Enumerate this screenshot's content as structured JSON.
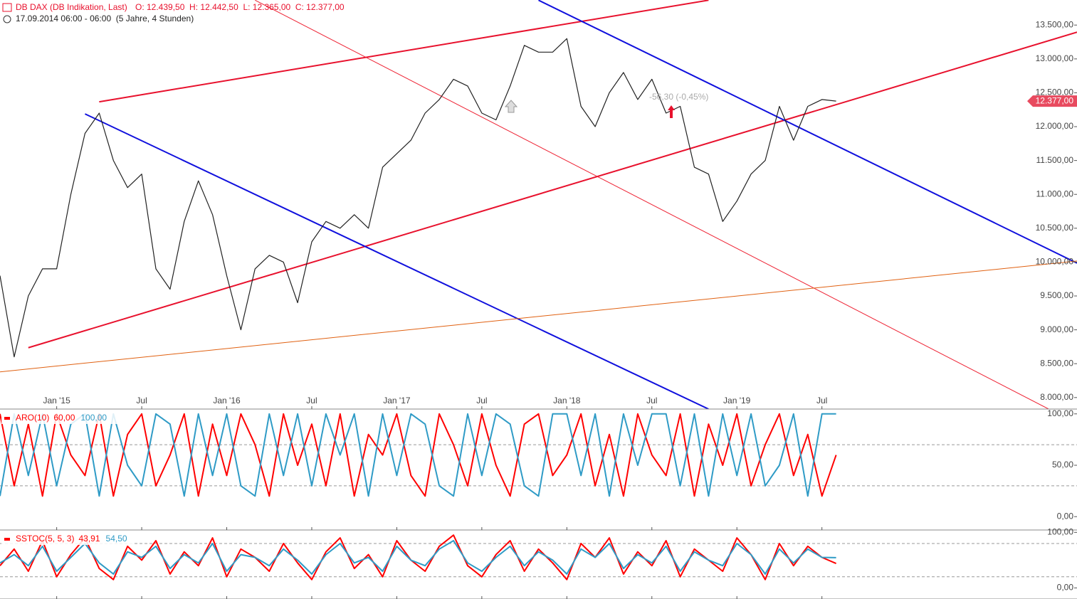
{
  "chart_data": [
    {
      "type": "line",
      "title": "DB DAX (DB Indikation, Last)",
      "ohlc": "O: 12.439,50  H: 12.442,50  L: 12.365,00  C: 12.377,00",
      "subtitle": "17.09.2014 06:00 - 06:00  (5 Jahre, 4 Stunden)",
      "annotation": "-56,30 (-0,45%)",
      "xlim": [
        "2014-09",
        "2021-01"
      ],
      "xticks": [
        {
          "value": "2015-01",
          "label": "Jan '15"
        },
        {
          "value": "2015-07",
          "label": "Jul"
        },
        {
          "value": "2016-01",
          "label": "Jan '16"
        },
        {
          "value": "2016-07",
          "label": "Jul"
        },
        {
          "value": "2017-01",
          "label": "Jan '17"
        },
        {
          "value": "2017-07",
          "label": "Jul"
        },
        {
          "value": "2018-01",
          "label": "Jan '18"
        },
        {
          "value": "2018-07",
          "label": "Jul"
        },
        {
          "value": "2019-01",
          "label": "Jan '19"
        },
        {
          "value": "2019-07",
          "label": "Jul"
        }
      ],
      "ylim": [
        7830,
        13870
      ],
      "yticks": [
        {
          "value": 8000,
          "label": "8.000,00"
        },
        {
          "value": 8500,
          "label": "8.500,00"
        },
        {
          "value": 9000,
          "label": "9.000,00"
        },
        {
          "value": 9500,
          "label": "9.500,00"
        },
        {
          "value": 10000,
          "label": "10.000,00"
        },
        {
          "value": 10500,
          "label": "10.500,00"
        },
        {
          "value": 11000,
          "label": "11.000,00"
        },
        {
          "value": 11500,
          "label": "11.500,00"
        },
        {
          "value": 12000,
          "label": "12.000,00"
        },
        {
          "value": 12500,
          "label": "12.500,00"
        },
        {
          "value": 13000,
          "label": "13.000,00"
        },
        {
          "value": 13500,
          "label": "13.500,00"
        }
      ],
      "x": [
        "2014-09",
        "2014-10",
        "2014-11",
        "2014-12",
        "2015-01",
        "2015-02",
        "2015-03",
        "2015-04",
        "2015-05",
        "2015-06",
        "2015-07",
        "2015-08",
        "2015-09",
        "2015-10",
        "2015-11",
        "2015-12",
        "2016-01",
        "2016-02",
        "2016-03",
        "2016-04",
        "2016-05",
        "2016-06",
        "2016-07",
        "2016-08",
        "2016-09",
        "2016-10",
        "2016-11",
        "2016-12",
        "2017-01",
        "2017-02",
        "2017-03",
        "2017-04",
        "2017-05",
        "2017-06",
        "2017-07",
        "2017-08",
        "2017-09",
        "2017-10",
        "2017-11",
        "2017-12",
        "2018-01",
        "2018-02",
        "2018-03",
        "2018-04",
        "2018-05",
        "2018-06",
        "2018-07",
        "2018-08",
        "2018-09",
        "2018-10",
        "2018-11",
        "2018-12",
        "2019-01",
        "2019-02",
        "2019-03",
        "2019-04",
        "2019-05",
        "2019-06",
        "2019-07",
        "2019-08"
      ],
      "series": [
        {
          "color": "#222222",
          "values": [
            9800,
            8600,
            9500,
            9900,
            9900,
            11000,
            11900,
            12200,
            11500,
            11100,
            11300,
            9900,
            9600,
            10600,
            11200,
            10700,
            9800,
            9000,
            9900,
            10100,
            10000,
            9400,
            10300,
            10600,
            10500,
            10700,
            10500,
            11400,
            11600,
            11800,
            12200,
            12400,
            12700,
            12600,
            12200,
            12100,
            12600,
            13200,
            13100,
            13100,
            13300,
            12300,
            12000,
            12500,
            12800,
            12400,
            12700,
            12200,
            12300,
            11400,
            11300,
            10600,
            10900,
            11300,
            11500,
            12300,
            11800,
            12300,
            12400,
            12377
          ]
        }
      ],
      "last_price": {
        "value": 12377,
        "label": "12.377,00"
      },
      "trendlines": [
        {
          "color": "#e8112d",
          "width": 2,
          "from": [
            "2015-04",
            12367
          ],
          "to": [
            "2018-11",
            13867
          ]
        },
        {
          "color": "#e8112d",
          "width": 2,
          "from": [
            "2014-11",
            8736
          ],
          "to": [
            "2021-01",
            13395
          ]
        },
        {
          "color": "#1010dd",
          "width": 2,
          "from": [
            "2015-03",
            12188
          ],
          "to": [
            "2018-11",
            7830
          ]
        },
        {
          "color": "#1010dd",
          "width": 2,
          "from": [
            "2017-11",
            13867
          ],
          "to": [
            "2021-01",
            9985
          ]
        },
        {
          "color": "#ee2233",
          "width": 1,
          "from": [
            "2016-03",
            13867
          ],
          "to": [
            "2020-11",
            7830
          ]
        },
        {
          "color": "#e06010",
          "width": 1,
          "from": [
            "2014-09",
            8379
          ],
          "to": [
            "2021-01",
            10016
          ]
        }
      ]
    },
    {
      "type": "line",
      "title": "ARO(10)",
      "xlim": [
        "2014-09",
        "2021-01"
      ],
      "ylim": [
        -13,
        104
      ],
      "yticks": [
        {
          "value": 0,
          "label": "0,00"
        },
        {
          "value": 50,
          "label": "50,00"
        },
        {
          "value": 100,
          "label": "100,00"
        }
      ],
      "levels": [
        70,
        30
      ],
      "x": [
        "2014-09",
        "2014-10",
        "2014-11",
        "2014-12",
        "2015-01",
        "2015-02",
        "2015-03",
        "2015-04",
        "2015-05",
        "2015-06",
        "2015-07",
        "2015-08",
        "2015-09",
        "2015-10",
        "2015-11",
        "2015-12",
        "2016-01",
        "2016-02",
        "2016-03",
        "2016-04",
        "2016-05",
        "2016-06",
        "2016-07",
        "2016-08",
        "2016-09",
        "2016-10",
        "2016-11",
        "2016-12",
        "2017-01",
        "2017-02",
        "2017-03",
        "2017-04",
        "2017-05",
        "2017-06",
        "2017-07",
        "2017-08",
        "2017-09",
        "2017-10",
        "2017-11",
        "2017-12",
        "2018-01",
        "2018-02",
        "2018-03",
        "2018-04",
        "2018-05",
        "2018-06",
        "2018-07",
        "2018-08",
        "2018-09",
        "2018-10",
        "2018-11",
        "2018-12",
        "2019-01",
        "2019-02",
        "2019-03",
        "2019-04",
        "2019-05",
        "2019-06",
        "2019-07",
        "2019-08"
      ],
      "series": [
        {
          "color": "#ff0000",
          "last_label": "60,00",
          "values": [
            100,
            30,
            90,
            20,
            100,
            60,
            40,
            100,
            20,
            80,
            100,
            30,
            60,
            100,
            20,
            90,
            40,
            100,
            70,
            20,
            100,
            50,
            90,
            30,
            100,
            20,
            80,
            60,
            100,
            40,
            20,
            100,
            70,
            30,
            100,
            50,
            20,
            90,
            100,
            40,
            60,
            100,
            30,
            80,
            20,
            100,
            60,
            40,
            100,
            20,
            90,
            50,
            100,
            30,
            70,
            100,
            40,
            80,
            20,
            60
          ]
        },
        {
          "color": "#2f9bc6",
          "last_label": "100,00",
          "values": [
            20,
            100,
            40,
            100,
            30,
            90,
            100,
            20,
            100,
            50,
            30,
            100,
            90,
            20,
            100,
            40,
            100,
            30,
            20,
            100,
            40,
            100,
            30,
            100,
            60,
            100,
            20,
            100,
            40,
            100,
            90,
            30,
            20,
            100,
            40,
            100,
            90,
            30,
            20,
            100,
            100,
            40,
            100,
            20,
            100,
            50,
            100,
            100,
            30,
            100,
            20,
            100,
            40,
            100,
            30,
            50,
            100,
            20,
            100,
            100
          ]
        }
      ]
    },
    {
      "type": "line",
      "title": "SSTOC(5, 5, 3)",
      "xlim": [
        "2014-09",
        "2021-01"
      ],
      "ylim": [
        -20,
        103
      ],
      "yticks": [
        {
          "value": 0,
          "label": "0,00"
        },
        {
          "value": 100,
          "label": "100,00"
        }
      ],
      "levels": [
        80,
        20
      ],
      "x": [
        "2014-09",
        "2014-10",
        "2014-11",
        "2014-12",
        "2015-01",
        "2015-02",
        "2015-03",
        "2015-04",
        "2015-05",
        "2015-06",
        "2015-07",
        "2015-08",
        "2015-09",
        "2015-10",
        "2015-11",
        "2015-12",
        "2016-01",
        "2016-02",
        "2016-03",
        "2016-04",
        "2016-05",
        "2016-06",
        "2016-07",
        "2016-08",
        "2016-09",
        "2016-10",
        "2016-11",
        "2016-12",
        "2017-01",
        "2017-02",
        "2017-03",
        "2017-04",
        "2017-05",
        "2017-06",
        "2017-07",
        "2017-08",
        "2017-09",
        "2017-10",
        "2017-11",
        "2017-12",
        "2018-01",
        "2018-02",
        "2018-03",
        "2018-04",
        "2018-05",
        "2018-06",
        "2018-07",
        "2018-08",
        "2018-09",
        "2018-10",
        "2018-11",
        "2018-12",
        "2019-01",
        "2019-02",
        "2019-03",
        "2019-04",
        "2019-05",
        "2019-06",
        "2019-07",
        "2019-08"
      ],
      "series": [
        {
          "color": "#ff0000",
          "last_label": "43,91",
          "values": [
            40,
            70,
            30,
            85,
            20,
            60,
            90,
            35,
            15,
            75,
            50,
            85,
            25,
            65,
            40,
            90,
            20,
            70,
            55,
            30,
            80,
            45,
            15,
            65,
            90,
            35,
            60,
            20,
            85,
            50,
            30,
            75,
            95,
            40,
            20,
            60,
            85,
            30,
            70,
            45,
            15,
            80,
            55,
            90,
            25,
            65,
            40,
            85,
            20,
            70,
            50,
            30,
            90,
            60,
            15,
            80,
            40,
            75,
            55,
            43.91
          ]
        },
        {
          "color": "#2f9bc6",
          "last_label": "54,50",
          "values": [
            45,
            60,
            40,
            75,
            30,
            55,
            80,
            45,
            25,
            65,
            55,
            75,
            35,
            60,
            45,
            80,
            30,
            60,
            55,
            40,
            70,
            50,
            25,
            60,
            80,
            45,
            55,
            30,
            75,
            50,
            40,
            70,
            85,
            45,
            30,
            55,
            75,
            40,
            65,
            50,
            25,
            70,
            55,
            80,
            35,
            60,
            45,
            75,
            30,
            65,
            50,
            40,
            80,
            60,
            25,
            70,
            45,
            70,
            55,
            54.5
          ]
        }
      ]
    }
  ]
}
